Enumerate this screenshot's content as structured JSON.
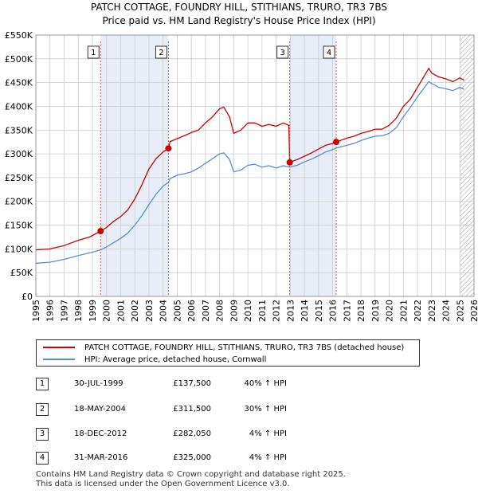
{
  "title_line1": "PATCH COTTAGE, FOUNDRY HILL, STITHIANS, TRURO, TR3 7BS",
  "title_line2": "Price paid vs. HM Land Registry's House Price Index (HPI)",
  "colors": {
    "price": "#cc0000",
    "hpi": "#5b8ec9",
    "shade": "#e8eef8",
    "grid": "#cccccc"
  },
  "chart_data": {
    "type": "line",
    "title": "Price paid vs. HM Land Registry's House Price Index (HPI)",
    "xlim": [
      1995,
      2026
    ],
    "ylim": [
      0,
      550000
    ],
    "y_ticks": [
      0,
      50000,
      100000,
      150000,
      200000,
      250000,
      300000,
      350000,
      400000,
      450000,
      500000,
      550000
    ],
    "y_tick_labels": [
      "£0",
      "£50K",
      "£100K",
      "£150K",
      "£200K",
      "£250K",
      "£300K",
      "£350K",
      "£400K",
      "£450K",
      "£500K",
      "£550K"
    ],
    "x_ticks": [
      1995,
      1996,
      1997,
      1998,
      1999,
      2000,
      2001,
      2002,
      2003,
      2004,
      2005,
      2006,
      2007,
      2008,
      2009,
      2010,
      2011,
      2012,
      2013,
      2014,
      2015,
      2016,
      2017,
      2018,
      2019,
      2020,
      2021,
      2022,
      2023,
      2024,
      2025,
      2026
    ],
    "x_tick_labels": [
      "1995",
      "1996",
      "1997",
      "1998",
      "1999",
      "2000",
      "2001",
      "2002",
      "2003",
      "2004",
      "2005",
      "2006",
      "2007",
      "2008",
      "2009",
      "2010",
      "2011",
      "2012",
      "2013",
      "2014",
      "2015",
      "2016",
      "2017",
      "2018",
      "2019",
      "2020",
      "2021",
      "2022",
      "2023",
      "2024",
      "2025",
      "2026"
    ],
    "shaded_ranges": [
      [
        1999.58,
        2004.38
      ],
      [
        2012.96,
        2016.25
      ]
    ],
    "hatched_from": 2025.0,
    "series": [
      {
        "name": "PATCH COTTAGE, FOUNDRY HILL, STITHIANS, TRURO, TR3 7BS (detached house)",
        "points": [
          [
            1995.0,
            98000
          ],
          [
            1996.0,
            100000
          ],
          [
            1997.0,
            107000
          ],
          [
            1998.0,
            118000
          ],
          [
            1998.8,
            125000
          ],
          [
            1999.58,
            137500
          ],
          [
            2000.0,
            145000
          ],
          [
            2000.5,
            158000
          ],
          [
            2001.0,
            168000
          ],
          [
            2001.5,
            182000
          ],
          [
            2002.0,
            205000
          ],
          [
            2002.5,
            235000
          ],
          [
            2003.0,
            268000
          ],
          [
            2003.5,
            290000
          ],
          [
            2004.0,
            304000
          ],
          [
            2004.38,
            311500
          ],
          [
            2004.5,
            326000
          ],
          [
            2005.0,
            332000
          ],
          [
            2005.5,
            338000
          ],
          [
            2006.0,
            345000
          ],
          [
            2006.5,
            350000
          ],
          [
            2007.0,
            365000
          ],
          [
            2007.5,
            378000
          ],
          [
            2008.0,
            395000
          ],
          [
            2008.3,
            398000
          ],
          [
            2008.7,
            378000
          ],
          [
            2009.0,
            343000
          ],
          [
            2009.5,
            350000
          ],
          [
            2010.0,
            365000
          ],
          [
            2010.5,
            365000
          ],
          [
            2011.0,
            358000
          ],
          [
            2011.5,
            362000
          ],
          [
            2012.0,
            358000
          ],
          [
            2012.5,
            365000
          ],
          [
            2012.9,
            360000
          ],
          [
            2012.96,
            282050
          ],
          [
            2013.5,
            288000
          ],
          [
            2014.0,
            295000
          ],
          [
            2014.5,
            302000
          ],
          [
            2015.0,
            310000
          ],
          [
            2015.5,
            318000
          ],
          [
            2016.0,
            322000
          ],
          [
            2016.25,
            325000
          ],
          [
            2017.0,
            333000
          ],
          [
            2017.5,
            337000
          ],
          [
            2018.0,
            343000
          ],
          [
            2018.5,
            347000
          ],
          [
            2019.0,
            352000
          ],
          [
            2019.5,
            352000
          ],
          [
            2020.0,
            360000
          ],
          [
            2020.5,
            375000
          ],
          [
            2021.0,
            400000
          ],
          [
            2021.5,
            415000
          ],
          [
            2022.0,
            440000
          ],
          [
            2022.5,
            465000
          ],
          [
            2022.8,
            480000
          ],
          [
            2023.0,
            470000
          ],
          [
            2023.5,
            462000
          ],
          [
            2024.0,
            458000
          ],
          [
            2024.5,
            452000
          ],
          [
            2025.0,
            460000
          ],
          [
            2025.3,
            455000
          ]
        ]
      },
      {
        "name": "HPI: Average price, detached house, Cornwall",
        "points": [
          [
            1995.0,
            70000
          ],
          [
            1996.0,
            72000
          ],
          [
            1997.0,
            78000
          ],
          [
            1998.0,
            86000
          ],
          [
            1999.0,
            93000
          ],
          [
            1999.58,
            98000
          ],
          [
            2000.0,
            104000
          ],
          [
            2000.5,
            113000
          ],
          [
            2001.0,
            122000
          ],
          [
            2001.5,
            133000
          ],
          [
            2002.0,
            150000
          ],
          [
            2002.5,
            170000
          ],
          [
            2003.0,
            193000
          ],
          [
            2003.5,
            215000
          ],
          [
            2004.0,
            232000
          ],
          [
            2004.38,
            240000
          ],
          [
            2004.5,
            248000
          ],
          [
            2005.0,
            255000
          ],
          [
            2005.5,
            258000
          ],
          [
            2006.0,
            262000
          ],
          [
            2006.5,
            270000
          ],
          [
            2007.0,
            280000
          ],
          [
            2007.5,
            290000
          ],
          [
            2008.0,
            300000
          ],
          [
            2008.3,
            302000
          ],
          [
            2008.7,
            288000
          ],
          [
            2009.0,
            262000
          ],
          [
            2009.5,
            266000
          ],
          [
            2010.0,
            276000
          ],
          [
            2010.5,
            278000
          ],
          [
            2011.0,
            272000
          ],
          [
            2011.5,
            275000
          ],
          [
            2012.0,
            270000
          ],
          [
            2012.5,
            275000
          ],
          [
            2012.96,
            272000
          ],
          [
            2013.5,
            276000
          ],
          [
            2014.0,
            283000
          ],
          [
            2014.5,
            289000
          ],
          [
            2015.0,
            296000
          ],
          [
            2015.5,
            304000
          ],
          [
            2016.0,
            309000
          ],
          [
            2016.25,
            312000
          ],
          [
            2017.0,
            318000
          ],
          [
            2017.5,
            322000
          ],
          [
            2018.0,
            328000
          ],
          [
            2018.5,
            333000
          ],
          [
            2019.0,
            337000
          ],
          [
            2019.5,
            338000
          ],
          [
            2020.0,
            343000
          ],
          [
            2020.5,
            355000
          ],
          [
            2021.0,
            378000
          ],
          [
            2021.5,
            398000
          ],
          [
            2022.0,
            420000
          ],
          [
            2022.5,
            440000
          ],
          [
            2022.8,
            452000
          ],
          [
            2023.0,
            448000
          ],
          [
            2023.5,
            440000
          ],
          [
            2024.0,
            437000
          ],
          [
            2024.5,
            433000
          ],
          [
            2025.0,
            440000
          ],
          [
            2025.3,
            436000
          ]
        ]
      }
    ],
    "annotations": [
      {
        "label": "1",
        "x": 1999.58,
        "y": 137500
      },
      {
        "label": "2",
        "x": 2004.38,
        "y": 311500
      },
      {
        "label": "3",
        "x": 2012.96,
        "y": 282050
      },
      {
        "label": "4",
        "x": 2016.25,
        "y": 325000
      }
    ]
  },
  "legend": {
    "price_label": "PATCH COTTAGE, FOUNDRY HILL, STITHIANS, TRURO, TR3 7BS (detached house)",
    "hpi_label": "HPI: Average price, detached house, Cornwall"
  },
  "transactions": [
    {
      "num": "1",
      "date": "30-JUL-1999",
      "price": "£137,500",
      "hpi": "40% ↑ HPI"
    },
    {
      "num": "2",
      "date": "18-MAY-2004",
      "price": "£311,500",
      "hpi": "30% ↑ HPI"
    },
    {
      "num": "3",
      "date": "18-DEC-2012",
      "price": "£282,050",
      "hpi": "4% ↑ HPI"
    },
    {
      "num": "4",
      "date": "31-MAR-2016",
      "price": "£325,000",
      "hpi": "4% ↑ HPI"
    }
  ],
  "footer": {
    "line1": "Contains HM Land Registry data © Crown copyright and database right 2025.",
    "line2": "This data is licensed under the Open Government Licence v3.0."
  }
}
